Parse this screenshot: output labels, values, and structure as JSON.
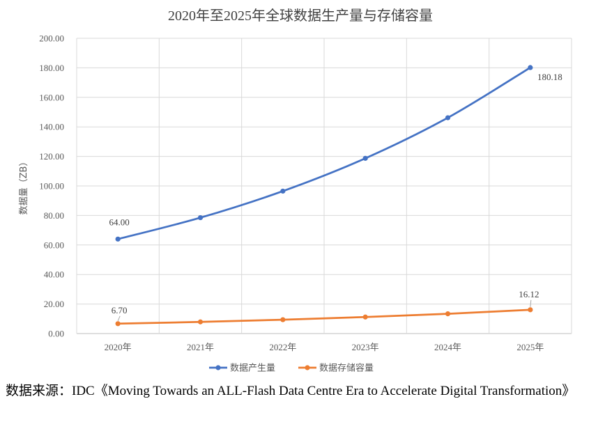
{
  "chart_data": {
    "type": "line",
    "title": "2020年至2025年全球数据生产量与存储容量",
    "xlabel": "",
    "ylabel": "数据量（ZB）",
    "categories": [
      "2020年",
      "2021年",
      "2022年",
      "2023年",
      "2024年",
      "2025年"
    ],
    "ylim": [
      0,
      200
    ],
    "yticks": [
      "0.00",
      "20.00",
      "40.00",
      "60.00",
      "80.00",
      "100.00",
      "120.00",
      "140.00",
      "160.00",
      "180.00",
      "200.00"
    ],
    "grid": true,
    "legend_position": "bottom",
    "series": [
      {
        "name": "数据产生量",
        "color": "#4472C4",
        "values": [
          64.0,
          78.5,
          96.5,
          118.7,
          146.2,
          180.18
        ]
      },
      {
        "name": "数据存储容量",
        "color": "#ED7D31",
        "values": [
          6.7,
          7.9,
          9.4,
          11.2,
          13.4,
          16.12
        ]
      }
    ],
    "annotations": [
      {
        "series": 0,
        "index": 0,
        "text": "64.00"
      },
      {
        "series": 0,
        "index": 5,
        "text": "180.18"
      },
      {
        "series": 1,
        "index": 0,
        "text": "6.70"
      },
      {
        "series": 1,
        "index": 5,
        "text": "16.12"
      }
    ]
  },
  "source_note": "数据来源：IDC《Moving Towards an ALL-Flash Data Centre Era to Accelerate Digital Transformation》"
}
